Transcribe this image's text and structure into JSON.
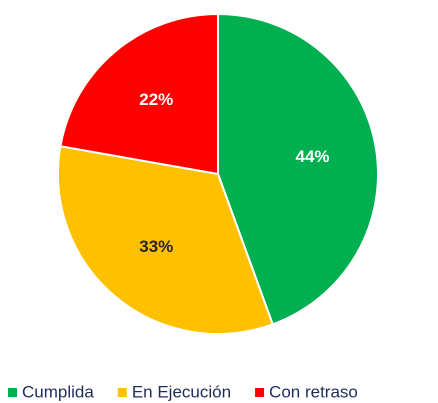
{
  "chart_data": {
    "type": "pie",
    "categories": [
      "Cumplida",
      "En Ejecución",
      "Con retraso"
    ],
    "values": [
      44,
      33,
      22
    ],
    "value_labels": [
      "44%",
      "33%",
      "22%"
    ],
    "colors": [
      "#00b050",
      "#ffc000",
      "#ff0000"
    ],
    "label_colors": [
      "#ffffff",
      "#262626",
      "#ffffff"
    ],
    "legend": "bottom"
  }
}
